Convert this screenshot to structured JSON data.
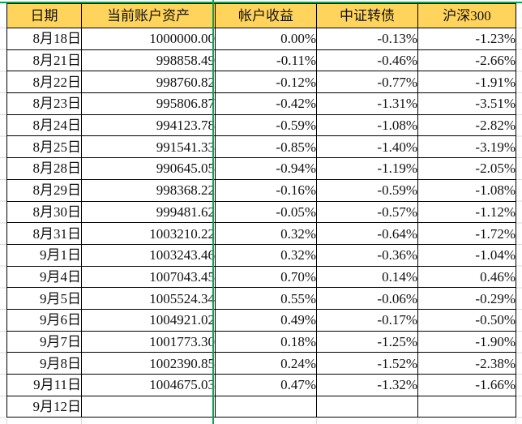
{
  "colors": {
    "header_fill": "#FFD45C",
    "page_break_line": "#00A651",
    "cell_border": "#000000",
    "gridline": "#d9d9d9"
  },
  "table": {
    "headers": [
      "日期",
      "当前账户资产",
      "帐户收益",
      "中证转债",
      "沪深300"
    ],
    "rows": [
      {
        "date": "8月18日",
        "assets": "1000000.00",
        "account_return": "0.00%",
        "csi_convertible_bond": "-0.13%",
        "csi_300": "-1.23%"
      },
      {
        "date": "8月21日",
        "assets": "998858.49",
        "account_return": "-0.11%",
        "csi_convertible_bond": "-0.46%",
        "csi_300": "-2.66%"
      },
      {
        "date": "8月22日",
        "assets": "998760.82",
        "account_return": "-0.12%",
        "csi_convertible_bond": "-0.77%",
        "csi_300": "-1.91%"
      },
      {
        "date": "8月23日",
        "assets": "995806.87",
        "account_return": "-0.42%",
        "csi_convertible_bond": "-1.31%",
        "csi_300": "-3.51%"
      },
      {
        "date": "8月24日",
        "assets": "994123.78",
        "account_return": "-0.59%",
        "csi_convertible_bond": "-1.08%",
        "csi_300": "-2.82%"
      },
      {
        "date": "8月25日",
        "assets": "991541.33",
        "account_return": "-0.85%",
        "csi_convertible_bond": "-1.40%",
        "csi_300": "-3.19%"
      },
      {
        "date": "8月28日",
        "assets": "990645.05",
        "account_return": "-0.94%",
        "csi_convertible_bond": "-1.19%",
        "csi_300": "-2.05%"
      },
      {
        "date": "8月29日",
        "assets": "998368.22",
        "account_return": "-0.16%",
        "csi_convertible_bond": "-0.59%",
        "csi_300": "-1.08%"
      },
      {
        "date": "8月30日",
        "assets": "999481.62",
        "account_return": "-0.05%",
        "csi_convertible_bond": "-0.57%",
        "csi_300": "-1.12%"
      },
      {
        "date": "8月31日",
        "assets": "1003210.22",
        "account_return": "0.32%",
        "csi_convertible_bond": "-0.64%",
        "csi_300": "-1.72%"
      },
      {
        "date": "9月1日",
        "assets": "1003243.46",
        "account_return": "0.32%",
        "csi_convertible_bond": "-0.36%",
        "csi_300": "-1.04%"
      },
      {
        "date": "9月4日",
        "assets": "1007043.45",
        "account_return": "0.70%",
        "csi_convertible_bond": "0.14%",
        "csi_300": "0.46%"
      },
      {
        "date": "9月5日",
        "assets": "1005524.34",
        "account_return": "0.55%",
        "csi_convertible_bond": "-0.06%",
        "csi_300": "-0.29%"
      },
      {
        "date": "9月6日",
        "assets": "1004921.02",
        "account_return": "0.49%",
        "csi_convertible_bond": "-0.17%",
        "csi_300": "-0.50%"
      },
      {
        "date": "9月7日",
        "assets": "1001773.30",
        "account_return": "0.18%",
        "csi_convertible_bond": "-1.25%",
        "csi_300": "-1.90%"
      },
      {
        "date": "9月8日",
        "assets": "1002390.85",
        "account_return": "0.24%",
        "csi_convertible_bond": "-1.52%",
        "csi_300": "-2.38%"
      },
      {
        "date": "9月11日",
        "assets": "1004675.03",
        "account_return": "0.47%",
        "csi_convertible_bond": "-1.32%",
        "csi_300": "-1.66%"
      },
      {
        "date": "9月12日",
        "assets": "",
        "account_return": "",
        "csi_convertible_bond": "",
        "csi_300": ""
      }
    ]
  }
}
